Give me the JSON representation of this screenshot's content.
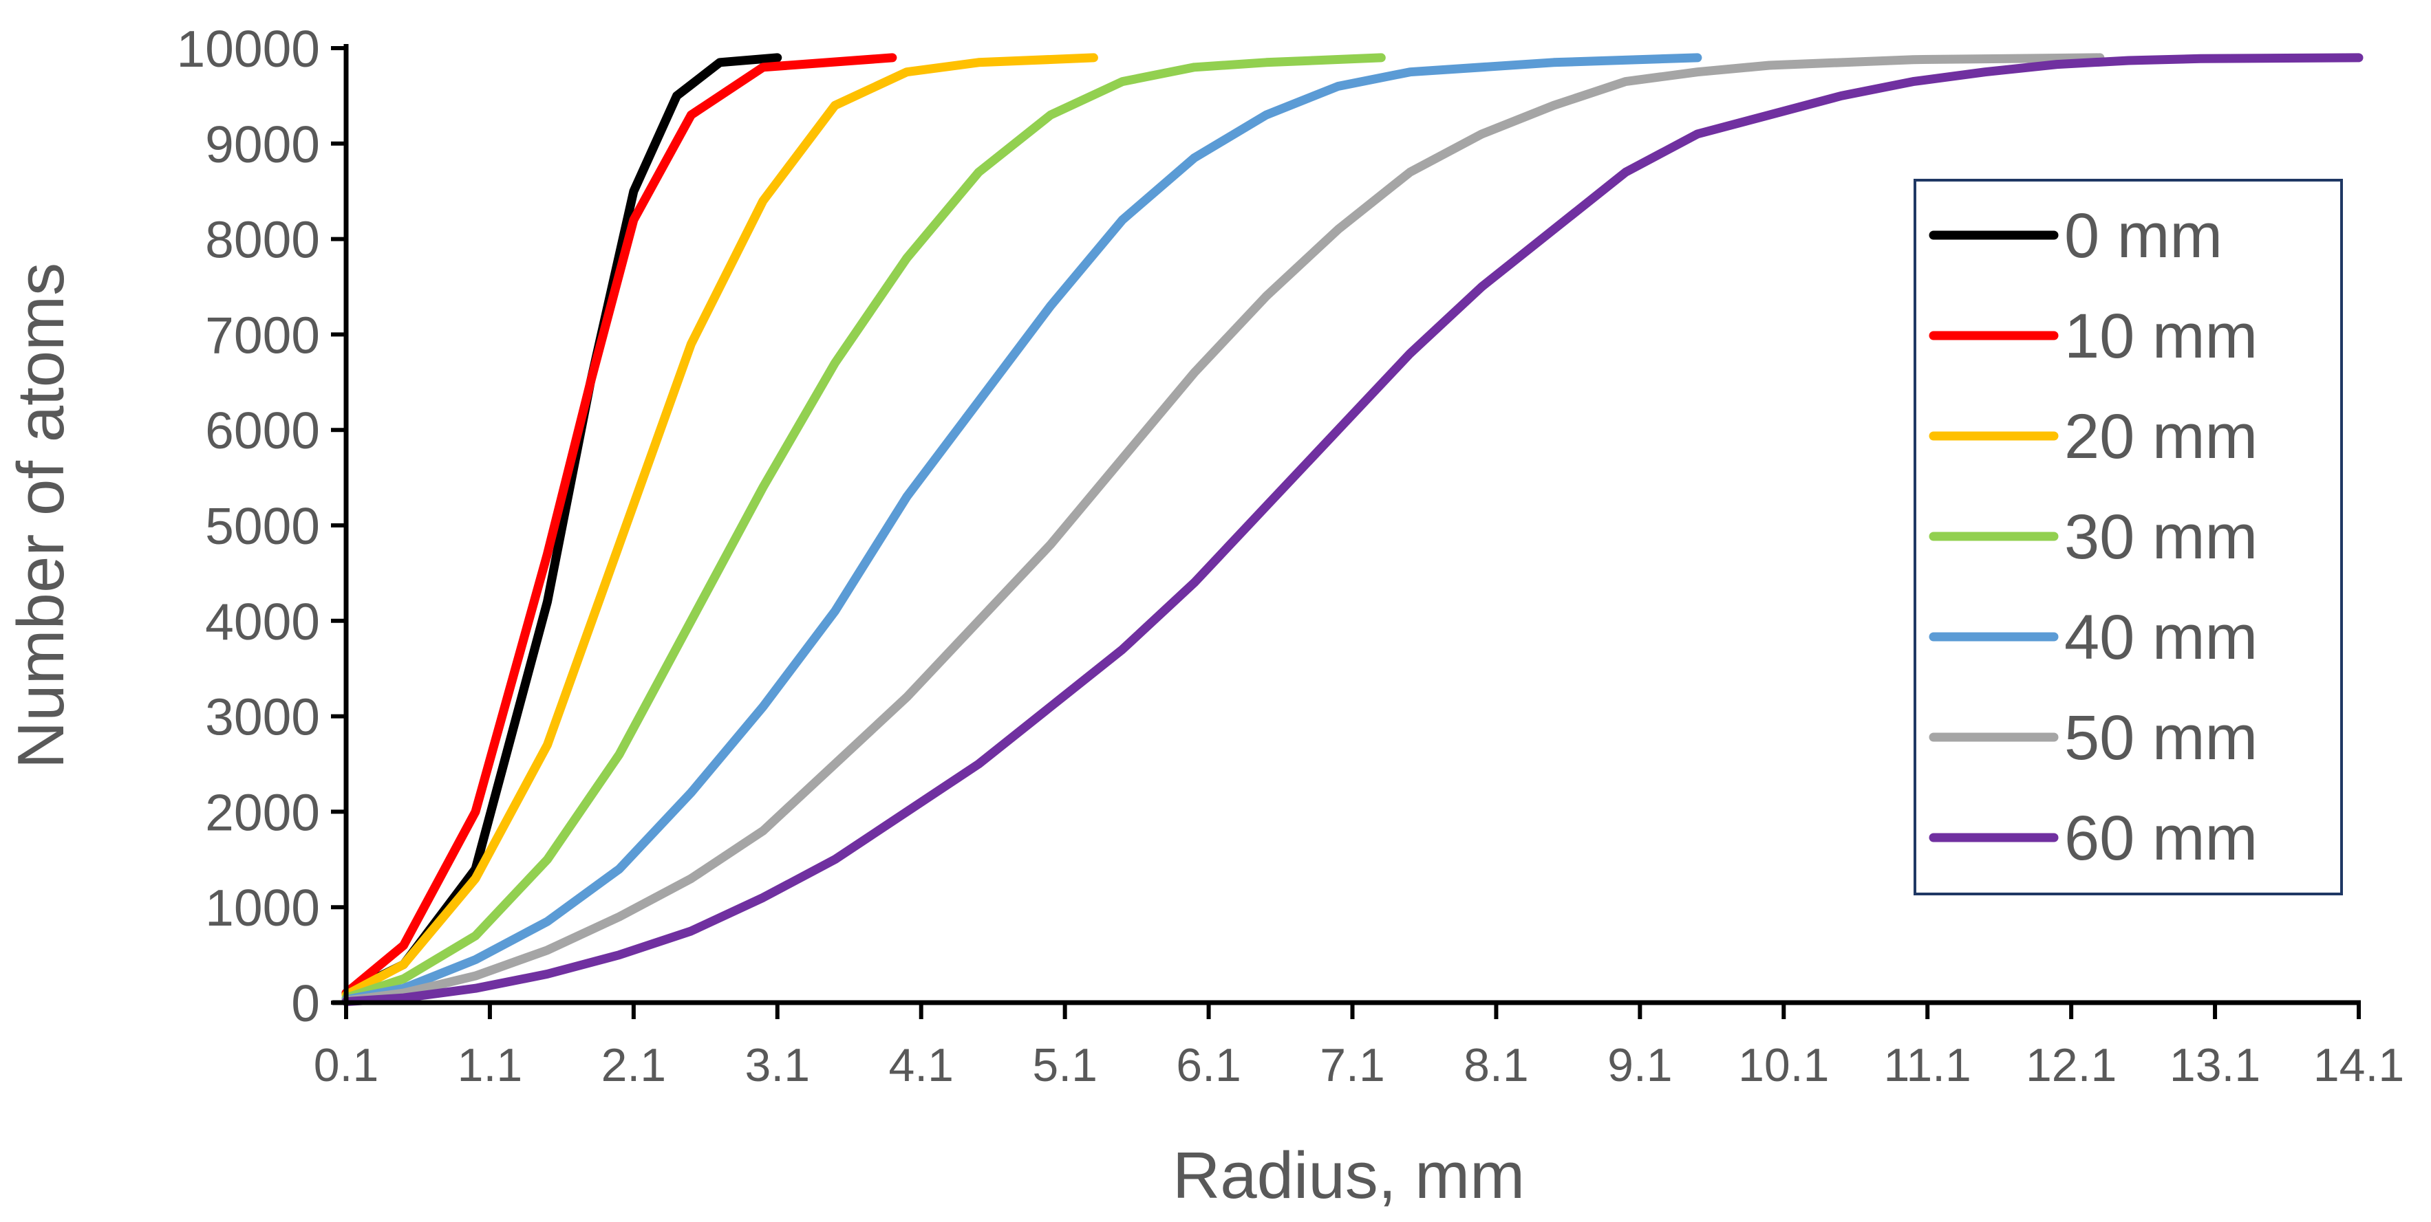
{
  "chart_data": {
    "type": "line",
    "title": "",
    "xlabel": "Radius,  mm",
    "ylabel": "Number of atoms",
    "xlim": [
      0.1,
      14.1
    ],
    "ylim": [
      0,
      10000
    ],
    "x_ticks": [
      "0.1",
      "1.1",
      "2.1",
      "3.1",
      "4.1",
      "5.1",
      "6.1",
      "7.1",
      "8.1",
      "9.1",
      "10.1",
      "11.1",
      "12.1",
      "13.1",
      "14.1"
    ],
    "y_ticks": [
      "0",
      "1000",
      "2000",
      "3000",
      "4000",
      "5000",
      "6000",
      "7000",
      "8000",
      "9000",
      "10000"
    ],
    "grid": false,
    "legend_position": "right",
    "series": [
      {
        "name": "0 mm",
        "color": "#000000",
        "points": [
          [
            0.1,
            100
          ],
          [
            0.5,
            400
          ],
          [
            1.0,
            1400
          ],
          [
            1.5,
            4200
          ],
          [
            1.8,
            6500
          ],
          [
            2.1,
            8500
          ],
          [
            2.4,
            9500
          ],
          [
            2.7,
            9850
          ],
          [
            3.1,
            9900
          ]
        ]
      },
      {
        "name": "10 mm",
        "color": "#ff0000",
        "points": [
          [
            0.1,
            100
          ],
          [
            0.5,
            600
          ],
          [
            1.0,
            2000
          ],
          [
            1.5,
            4700
          ],
          [
            1.8,
            6500
          ],
          [
            2.1,
            8200
          ],
          [
            2.5,
            9300
          ],
          [
            3.0,
            9800
          ],
          [
            3.9,
            9900
          ]
        ]
      },
      {
        "name": "20 mm",
        "color": "#ffc000",
        "points": [
          [
            0.1,
            80
          ],
          [
            0.5,
            400
          ],
          [
            1.0,
            1300
          ],
          [
            1.5,
            2700
          ],
          [
            2.0,
            4800
          ],
          [
            2.5,
            6900
          ],
          [
            3.0,
            8400
          ],
          [
            3.5,
            9400
          ],
          [
            4.0,
            9750
          ],
          [
            4.5,
            9850
          ],
          [
            5.3,
            9900
          ]
        ]
      },
      {
        "name": "30 mm",
        "color": "#92d050",
        "points": [
          [
            0.1,
            50
          ],
          [
            0.5,
            250
          ],
          [
            1.0,
            700
          ],
          [
            1.5,
            1500
          ],
          [
            2.0,
            2600
          ],
          [
            2.5,
            4000
          ],
          [
            3.0,
            5400
          ],
          [
            3.5,
            6700
          ],
          [
            4.0,
            7800
          ],
          [
            4.5,
            8700
          ],
          [
            5.0,
            9300
          ],
          [
            5.5,
            9650
          ],
          [
            6.0,
            9800
          ],
          [
            6.5,
            9850
          ],
          [
            7.3,
            9900
          ]
        ]
      },
      {
        "name": "40 mm",
        "color": "#5b9bd5",
        "points": [
          [
            0.1,
            30
          ],
          [
            0.5,
            150
          ],
          [
            1.0,
            450
          ],
          [
            1.5,
            850
          ],
          [
            2.0,
            1400
          ],
          [
            2.5,
            2200
          ],
          [
            3.0,
            3100
          ],
          [
            3.5,
            4100
          ],
          [
            4.0,
            5300
          ],
          [
            4.5,
            6300
          ],
          [
            5.0,
            7300
          ],
          [
            5.5,
            8200
          ],
          [
            6.0,
            8850
          ],
          [
            6.5,
            9300
          ],
          [
            7.0,
            9600
          ],
          [
            7.5,
            9750
          ],
          [
            8.5,
            9850
          ],
          [
            9.5,
            9900
          ]
        ]
      },
      {
        "name": "50 mm",
        "color": "#a5a5a5",
        "points": [
          [
            0.1,
            20
          ],
          [
            0.5,
            100
          ],
          [
            1.0,
            280
          ],
          [
            1.5,
            550
          ],
          [
            2.0,
            900
          ],
          [
            2.5,
            1300
          ],
          [
            3.0,
            1800
          ],
          [
            3.5,
            2500
          ],
          [
            4.0,
            3200
          ],
          [
            4.5,
            4000
          ],
          [
            5.0,
            4800
          ],
          [
            5.5,
            5700
          ],
          [
            6.0,
            6600
          ],
          [
            6.5,
            7400
          ],
          [
            7.0,
            8100
          ],
          [
            7.5,
            8700
          ],
          [
            8.0,
            9100
          ],
          [
            8.5,
            9400
          ],
          [
            9.0,
            9650
          ],
          [
            9.5,
            9750
          ],
          [
            10.0,
            9820
          ],
          [
            11.0,
            9880
          ],
          [
            12.3,
            9900
          ]
        ]
      },
      {
        "name": "60 mm",
        "color": "#7030a0",
        "points": [
          [
            0.1,
            10
          ],
          [
            0.5,
            50
          ],
          [
            1.0,
            150
          ],
          [
            1.5,
            300
          ],
          [
            2.0,
            500
          ],
          [
            2.5,
            750
          ],
          [
            3.0,
            1100
          ],
          [
            3.5,
            1500
          ],
          [
            4.0,
            2000
          ],
          [
            4.5,
            2500
          ],
          [
            5.0,
            3100
          ],
          [
            5.5,
            3700
          ],
          [
            6.0,
            4400
          ],
          [
            6.5,
            5200
          ],
          [
            7.0,
            6000
          ],
          [
            7.5,
            6800
          ],
          [
            8.0,
            7500
          ],
          [
            8.5,
            8100
          ],
          [
            9.0,
            8700
          ],
          [
            9.5,
            9100
          ],
          [
            10.0,
            9300
          ],
          [
            10.5,
            9500
          ],
          [
            11.0,
            9650
          ],
          [
            11.5,
            9750
          ],
          [
            12.0,
            9830
          ],
          [
            12.5,
            9870
          ],
          [
            13.0,
            9890
          ],
          [
            14.1,
            9900
          ]
        ]
      }
    ]
  }
}
